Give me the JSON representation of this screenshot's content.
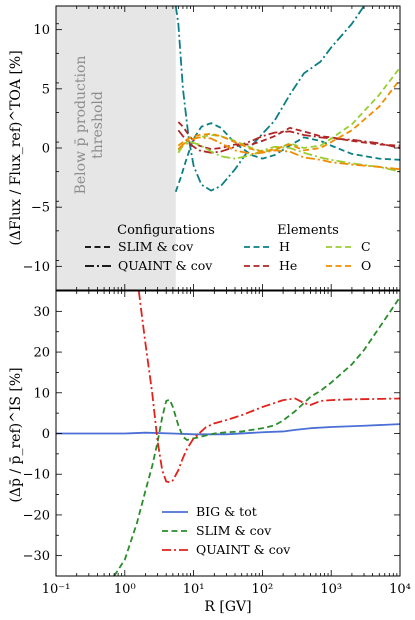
{
  "chart_data": [
    {
      "type": "line",
      "panel": "top",
      "xlabel": "",
      "ylabel": "(ΔFlux / Flux_ref)^TOA [%]",
      "xscale": "log",
      "xlim": [
        0.1,
        10000
      ],
      "ylim": [
        -12,
        12
      ],
      "yticks": [
        -10,
        -5,
        0,
        5,
        10
      ],
      "shaded_region": {
        "x": [
          0.1,
          5.5
        ],
        "color": "#e6e6e6",
        "label_line1": "Below p̄ production",
        "label_line2": "threshold"
      },
      "legend": {
        "configurations_title": "Configurations",
        "configurations": [
          {
            "label": "SLIM & cov",
            "dash": "dashed"
          },
          {
            "label": "QUAINT & cov",
            "dash": "dashdot"
          }
        ],
        "elements_title": "Elements",
        "elements": [
          {
            "label": "H",
            "color": "#0b7f86"
          },
          {
            "label": "He",
            "color": "#b02626"
          },
          {
            "label": "C",
            "color": "#9acd32"
          },
          {
            "label": "O",
            "color": "#f08c00"
          }
        ]
      },
      "series": [
        {
          "element": "H",
          "config": "SLIM & cov",
          "color": "#0b7f86",
          "dash": "dashed",
          "x": [
            5.5,
            6.5,
            8,
            10,
            13,
            18,
            25,
            40,
            70,
            100,
            150,
            250,
            400,
            700,
            1000,
            2000,
            5000,
            10000
          ],
          "y": [
            -3.7,
            -2.5,
            -0.8,
            0.8,
            1.8,
            2.1,
            1.7,
            0.4,
            -0.6,
            -0.9,
            -0.6,
            0.2,
            0.9,
            0.6,
            0.2,
            -0.5,
            -0.9,
            -1.0
          ]
        },
        {
          "element": "H",
          "config": "QUAINT & cov",
          "color": "#0b7f86",
          "dash": "dashdot",
          "x": [
            5.5,
            6,
            7,
            8.5,
            10,
            13,
            18,
            25,
            40,
            70,
            100,
            150,
            250,
            400,
            700,
            1000,
            2000,
            3000
          ],
          "y": [
            12,
            10.5,
            5,
            0.8,
            -1.5,
            -3.1,
            -3.6,
            -3.2,
            -1.8,
            0.2,
            1.2,
            2.3,
            4.5,
            6.3,
            7.3,
            8.5,
            10.5,
            12
          ]
        },
        {
          "element": "He",
          "config": "SLIM & cov",
          "color": "#b02626",
          "dash": "dashed",
          "x": [
            6,
            7,
            9,
            12,
            18,
            25,
            40,
            70,
            100,
            150,
            250,
            400,
            700,
            1000,
            2000,
            5000,
            10000
          ],
          "y": [
            2.2,
            1.8,
            0.9,
            0.2,
            -0.1,
            0.0,
            0.3,
            0.3,
            0.6,
            1.0,
            1.7,
            1.4,
            1.0,
            0.9,
            0.6,
            0.3,
            0.2
          ]
        },
        {
          "element": "He",
          "config": "QUAINT & cov",
          "color": "#b02626",
          "dash": "dashdot",
          "x": [
            6,
            7,
            9,
            12,
            18,
            25,
            40,
            70,
            100,
            150,
            250,
            400,
            700,
            1000,
            2000,
            5000,
            10000
          ],
          "y": [
            1.5,
            1.0,
            0.3,
            -0.2,
            -0.4,
            -0.3,
            0.1,
            0.6,
            1.0,
            1.3,
            1.4,
            1.1,
            0.9,
            0.8,
            0.7,
            0.4,
            0.0
          ]
        },
        {
          "element": "C",
          "config": "SLIM & cov",
          "color": "#9acd32",
          "dash": "dashed",
          "x": [
            6,
            7,
            9,
            12,
            18,
            25,
            40,
            70,
            100,
            150,
            250,
            400,
            700,
            1000,
            2000,
            5000,
            10000
          ],
          "y": [
            -0.2,
            0.3,
            0.7,
            0.9,
            1.1,
            1.0,
            0.6,
            0.0,
            -0.3,
            -0.2,
            0.4,
            0.0,
            0.2,
            0.8,
            2.0,
            4.5,
            6.8
          ]
        },
        {
          "element": "C",
          "config": "QUAINT & cov",
          "color": "#9acd32",
          "dash": "dashdot",
          "x": [
            6,
            7,
            9,
            12,
            18,
            25,
            40,
            70,
            100,
            150,
            250,
            400,
            700,
            1000,
            2000,
            5000,
            10000
          ],
          "y": [
            -0.4,
            0.2,
            0.5,
            0.3,
            -0.3,
            -0.7,
            -0.9,
            -0.6,
            -0.2,
            0.1,
            0.0,
            -0.4,
            -0.8,
            -1.0,
            -1.3,
            -1.6,
            -2.0
          ]
        },
        {
          "element": "O",
          "config": "SLIM & cov",
          "color": "#f08c00",
          "dash": "dashed",
          "x": [
            6,
            7,
            9,
            12,
            18,
            25,
            40,
            70,
            100,
            150,
            250,
            400,
            700,
            1000,
            2000,
            5000,
            10000
          ],
          "y": [
            0.2,
            0.5,
            0.9,
            1.1,
            1.2,
            1.0,
            0.5,
            -0.1,
            -0.3,
            -0.1,
            0.3,
            -0.2,
            0.0,
            0.5,
            1.5,
            3.5,
            5.8
          ]
        },
        {
          "element": "O",
          "config": "QUAINT & cov",
          "color": "#f08c00",
          "dash": "dashdot",
          "x": [
            6,
            7,
            9,
            12,
            18,
            25,
            40,
            70,
            100,
            150,
            250,
            400,
            700,
            1000,
            2000,
            5000,
            10000
          ],
          "y": [
            -0.1,
            0.3,
            0.7,
            0.9,
            0.8,
            0.4,
            -0.2,
            -0.5,
            -0.4,
            -0.2,
            -0.3,
            -0.8,
            -1.0,
            -1.2,
            -1.4,
            -1.6,
            -1.8
          ]
        }
      ]
    },
    {
      "type": "line",
      "panel": "bottom",
      "xlabel": "R [GV]",
      "ylabel": "(Δp̄ / p̄_ref)^IS [%]",
      "xscale": "log",
      "xlim": [
        0.1,
        10000
      ],
      "ylim": [
        -35,
        35
      ],
      "yticks": [
        -30,
        -20,
        -10,
        0,
        10,
        20,
        30
      ],
      "xticks": [
        {
          "value": 0.1,
          "label": "10⁻¹"
        },
        {
          "value": 1,
          "label": "10⁰"
        },
        {
          "value": 10,
          "label": "10¹"
        },
        {
          "value": 100,
          "label": "10²"
        },
        {
          "value": 1000,
          "label": "10³"
        },
        {
          "value": 10000,
          "label": "10⁴"
        }
      ],
      "legend_position": "lower-center",
      "series": [
        {
          "name": "BIG & tot",
          "color": "#4c6fd6",
          "dash": "solid",
          "x": [
            0.1,
            0.3,
            1,
            2,
            5,
            10,
            30,
            100,
            200,
            300,
            500,
            1000,
            3000,
            10000
          ],
          "y": [
            0,
            0,
            0,
            0.2,
            0,
            -0.2,
            -0.2,
            0.3,
            0.5,
            0.9,
            1.3,
            1.6,
            1.9,
            2.3
          ]
        },
        {
          "name": "SLIM & cov",
          "color": "#2a8c2a",
          "dash": "dashed",
          "x": [
            0.7,
            1,
            1.5,
            2,
            2.5,
            3,
            3.5,
            4,
            4.5,
            5,
            6,
            7,
            8,
            10,
            15,
            20,
            30,
            50,
            100,
            150,
            200,
            300,
            500,
            700,
            1000,
            2000,
            3000,
            5000,
            10000
          ],
          "y": [
            -35,
            -31,
            -22,
            -14,
            -8,
            -2,
            4,
            8,
            8.3,
            6.5,
            2,
            -0.8,
            -1.6,
            -1.2,
            -0.5,
            0,
            0.3,
            0.5,
            1.3,
            2,
            3.2,
            5.5,
            9,
            10.5,
            12.5,
            17,
            20.5,
            26,
            33.5
          ]
        },
        {
          "name": "QUAINT & cov",
          "color": "#e0221c",
          "dash": "dashdot",
          "x": [
            1.6,
            1.8,
            2,
            2.5,
            3,
            3.5,
            4,
            4.5,
            5,
            6,
            7,
            8,
            10,
            15,
            20,
            30,
            50,
            100,
            200,
            300,
            400,
            500,
            700,
            1000,
            2000,
            5000,
            10000
          ],
          "y": [
            35,
            28,
            22,
            10,
            -2,
            -9,
            -11.8,
            -12,
            -11.5,
            -9,
            -6,
            -3.8,
            -1.2,
            1.5,
            2.5,
            3.3,
            4.5,
            6.5,
            8.2,
            8.6,
            7.5,
            7,
            8,
            8.2,
            8.4,
            8.5,
            8.6
          ]
        }
      ]
    }
  ]
}
